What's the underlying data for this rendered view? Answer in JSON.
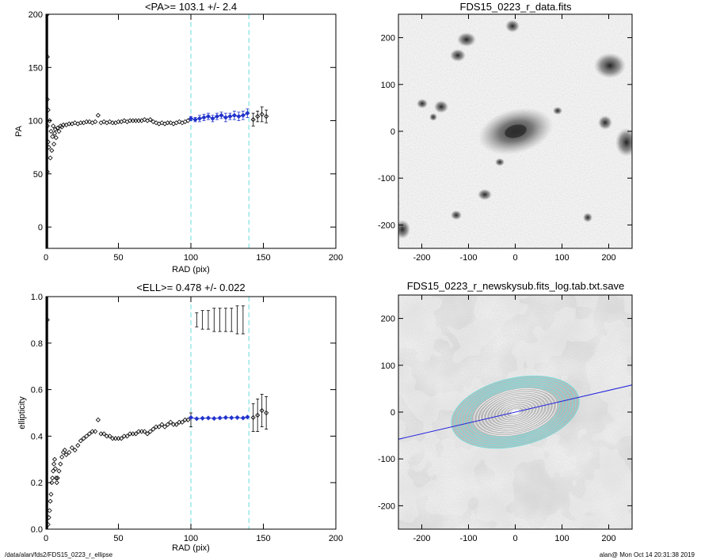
{
  "footer": {
    "path": "/data/alan/fds2/FDS15_0223_r_ellipse",
    "user_time": "alan@  Mon Oct 14 20:31:38 2019"
  },
  "colors": {
    "guide_line": "#66dddd",
    "fit_series": "#2233cc",
    "data_series": "#000000",
    "pa_line": "#2222dd",
    "iso_ellipse": "#77dddd"
  },
  "chart_data": [
    {
      "type": "scatter",
      "title": "<PA>= 103.1 +/-   2.4",
      "xlabel": "RAD (pix)",
      "ylabel": "PA",
      "xlim": [
        0,
        200
      ],
      "ylim": [
        -20,
        200
      ],
      "xticks": [
        0,
        50,
        100,
        150,
        200
      ],
      "yticks": [
        0,
        50,
        100,
        150,
        200
      ],
      "guides_x": [
        100,
        140
      ],
      "grid": false,
      "series": [
        {
          "role": "data",
          "points": [
            [
              1,
              200
            ],
            [
              1,
              160
            ],
            [
              1,
              120
            ],
            [
              1,
              95
            ],
            [
              1,
              52
            ],
            [
              1.5,
              110
            ],
            [
              1.5,
              80
            ],
            [
              2,
              75
            ],
            [
              2.5,
              100
            ],
            [
              3,
              65
            ],
            [
              3.5,
              90
            ],
            [
              4,
              72
            ],
            [
              4.5,
              85
            ],
            [
              5,
              95
            ],
            [
              5.5,
              78
            ],
            [
              6,
              88
            ],
            [
              6.5,
              92
            ],
            [
              7,
              84
            ],
            [
              8,
              93
            ],
            [
              9,
              90
            ],
            [
              10,
              95
            ],
            [
              11,
              94
            ],
            [
              12,
              96
            ],
            [
              14,
              96
            ],
            [
              16,
              97
            ],
            [
              18,
              97
            ],
            [
              20,
              98
            ],
            [
              22,
              97
            ],
            [
              24,
              98
            ],
            [
              26,
              98
            ],
            [
              28,
              99
            ],
            [
              30,
              99
            ],
            [
              32,
              98
            ],
            [
              34,
              99
            ],
            [
              36,
              105
            ],
            [
              38,
              98
            ],
            [
              40,
              99
            ],
            [
              42,
              98
            ],
            [
              44,
              99
            ],
            [
              46,
              98
            ],
            [
              48,
              98
            ],
            [
              50,
              99
            ],
            [
              52,
              99
            ],
            [
              54,
              100
            ],
            [
              56,
              99
            ],
            [
              58,
              100
            ],
            [
              60,
              100
            ],
            [
              62,
              100
            ],
            [
              64,
              100
            ],
            [
              66,
              100
            ],
            [
              68,
              101
            ],
            [
              70,
              100
            ],
            [
              72,
              101
            ],
            [
              74,
              99
            ],
            [
              76,
              98
            ],
            [
              78,
              97
            ],
            [
              80,
              98
            ],
            [
              82,
              97
            ],
            [
              84,
              98
            ],
            [
              86,
              98
            ],
            [
              88,
              97
            ],
            [
              90,
              98
            ],
            [
              92,
              99
            ],
            [
              94,
              98
            ],
            [
              96,
              99
            ],
            [
              98,
              100
            ],
            [
              143,
              101
            ],
            [
              146,
              104
            ],
            [
              149,
              106
            ],
            [
              152,
              104
            ]
          ],
          "errors": [
            [
              143,
              6
            ],
            [
              146,
              5
            ],
            [
              149,
              7
            ],
            [
              152,
              6
            ]
          ]
        },
        {
          "role": "fit",
          "points": [
            [
              100,
              102
            ],
            [
              103,
              101
            ],
            [
              106,
              102
            ],
            [
              109,
              103
            ],
            [
              112,
              104
            ],
            [
              115,
              102
            ],
            [
              118,
              104
            ],
            [
              121,
              105
            ],
            [
              124,
              103
            ],
            [
              127,
              104
            ],
            [
              130,
              105
            ],
            [
              133,
              104
            ],
            [
              136,
              105
            ],
            [
              139,
              107
            ]
          ],
          "errors": [
            [
              100,
              2
            ],
            [
              103,
              2
            ],
            [
              106,
              3
            ],
            [
              109,
              3
            ],
            [
              112,
              3
            ],
            [
              115,
              3
            ],
            [
              118,
              3
            ],
            [
              121,
              3
            ],
            [
              124,
              4
            ],
            [
              127,
              3
            ],
            [
              130,
              4
            ],
            [
              133,
              4
            ],
            [
              136,
              4
            ],
            [
              139,
              4
            ]
          ]
        }
      ]
    },
    {
      "type": "scatter",
      "title": "<ELL>= 0.478 +/-  0.022",
      "xlabel": "RAD (pix)",
      "ylabel": "ellipticity",
      "xlim": [
        0,
        200
      ],
      "ylim": [
        0,
        1
      ],
      "xticks": [
        0,
        50,
        100,
        150,
        200
      ],
      "yticks": [
        0.0,
        0.2,
        0.4,
        0.6,
        0.8,
        1.0
      ],
      "guides_x": [
        100,
        140
      ],
      "grid": false,
      "series": [
        {
          "role": "data",
          "points": [
            [
              1,
              0.9
            ],
            [
              1.5,
              0.02
            ],
            [
              2,
              0.05
            ],
            [
              2.5,
              0.08
            ],
            [
              3,
              0.12
            ],
            [
              3.5,
              0.15
            ],
            [
              4,
              0.2
            ],
            [
              4.5,
              0.22
            ],
            [
              5,
              0.25
            ],
            [
              5.5,
              0.28
            ],
            [
              6,
              0.3
            ],
            [
              6.5,
              0.26
            ],
            [
              7,
              0.22
            ],
            [
              7.5,
              0.2
            ],
            [
              8,
              0.22
            ],
            [
              9,
              0.25
            ],
            [
              10,
              0.28
            ],
            [
              11,
              0.31
            ],
            [
              12,
              0.33
            ],
            [
              13,
              0.34
            ],
            [
              14,
              0.32
            ],
            [
              16,
              0.33
            ],
            [
              18,
              0.35
            ],
            [
              20,
              0.34
            ],
            [
              22,
              0.36
            ],
            [
              24,
              0.38
            ],
            [
              26,
              0.39
            ],
            [
              28,
              0.4
            ],
            [
              30,
              0.41
            ],
            [
              32,
              0.42
            ],
            [
              34,
              0.42
            ],
            [
              36,
              0.47
            ],
            [
              38,
              0.41
            ],
            [
              40,
              0.41
            ],
            [
              42,
              0.4
            ],
            [
              44,
              0.4
            ],
            [
              46,
              0.39
            ],
            [
              48,
              0.39
            ],
            [
              50,
              0.39
            ],
            [
              52,
              0.39
            ],
            [
              54,
              0.4
            ],
            [
              56,
              0.4
            ],
            [
              58,
              0.41
            ],
            [
              60,
              0.41
            ],
            [
              62,
              0.41
            ],
            [
              64,
              0.42
            ],
            [
              66,
              0.42
            ],
            [
              68,
              0.42
            ],
            [
              70,
              0.41
            ],
            [
              72,
              0.42
            ],
            [
              74,
              0.43
            ],
            [
              76,
              0.44
            ],
            [
              78,
              0.44
            ],
            [
              80,
              0.45
            ],
            [
              82,
              0.44
            ],
            [
              84,
              0.45
            ],
            [
              86,
              0.46
            ],
            [
              88,
              0.45
            ],
            [
              90,
              0.45
            ],
            [
              92,
              0.46
            ],
            [
              94,
              0.46
            ],
            [
              96,
              0.47
            ],
            [
              98,
              0.47
            ],
            [
              143,
              0.48
            ],
            [
              146,
              0.49
            ],
            [
              149,
              0.51
            ],
            [
              152,
              0.5
            ]
          ],
          "errors": [
            [
              100,
              0.03
            ],
            [
              104,
              0.03
            ],
            [
              108,
              0.04
            ],
            [
              112,
              0.04
            ],
            [
              116,
              0.05
            ],
            [
              120,
              0.05
            ],
            [
              124,
              0.05
            ],
            [
              128,
              0.05
            ],
            [
              132,
              0.06
            ],
            [
              136,
              0.06
            ],
            [
              143,
              0.06
            ],
            [
              146,
              0.07
            ],
            [
              149,
              0.07
            ],
            [
              152,
              0.07
            ]
          ]
        },
        {
          "role": "fit",
          "points": [
            [
              100,
              0.48
            ],
            [
              104,
              0.475
            ],
            [
              108,
              0.477
            ],
            [
              112,
              0.478
            ],
            [
              116,
              0.476
            ],
            [
              120,
              0.478
            ],
            [
              124,
              0.48
            ],
            [
              128,
              0.479
            ],
            [
              132,
              0.48
            ],
            [
              136,
              0.478
            ],
            [
              139,
              0.482
            ]
          ]
        }
      ]
    },
    {
      "type": "heatmap",
      "title": "FDS15_0223_r_data.fits",
      "xlabel": "",
      "ylabel": "",
      "xlim": [
        -250,
        250
      ],
      "ylim": [
        -250,
        250
      ],
      "xticks": [
        -200,
        -100,
        0,
        100,
        200
      ],
      "yticks": [
        -200,
        -100,
        0,
        100,
        200
      ]
    },
    {
      "type": "heatmap",
      "title": "FDS15_0223_r_newskysub.fits_log.tab.txt.save",
      "xlabel": "",
      "ylabel": "",
      "xlim": [
        -250,
        250
      ],
      "ylim": [
        -250,
        250
      ],
      "xticks": [
        -200,
        -100,
        0,
        100,
        200
      ],
      "yticks": [
        -200,
        -100,
        0,
        100,
        200
      ],
      "pa_deg": 103.1,
      "ellipticity": 0.478,
      "inner_sma_pix": 100,
      "outer_sma_pix": 140
    }
  ]
}
